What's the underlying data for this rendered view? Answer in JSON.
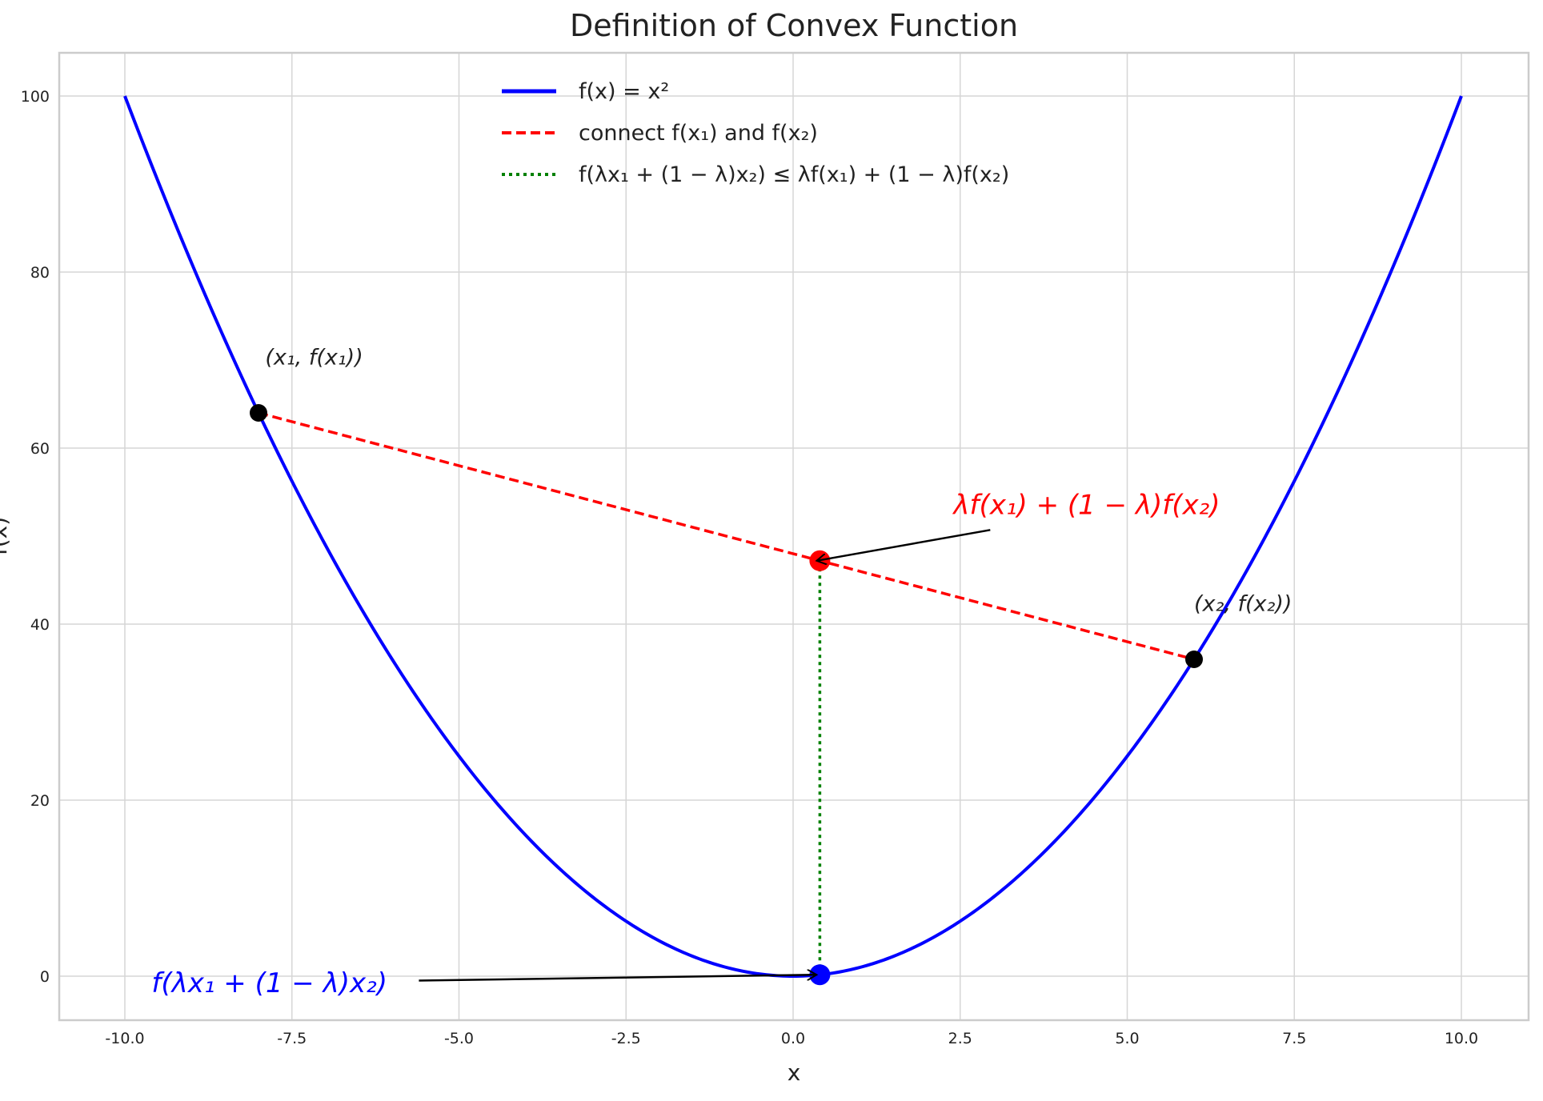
{
  "chart_data": {
    "type": "line",
    "title": "Definition of Convex Function",
    "xlabel": "x",
    "ylabel": "f(x)",
    "xlim": [
      -11,
      11
    ],
    "ylim": [
      -5,
      105
    ],
    "xticks": [
      -10.0,
      -7.5,
      -5.0,
      -2.5,
      0.0,
      2.5,
      5.0,
      7.5,
      10.0
    ],
    "xtick_labels": [
      "-10.0",
      "-7.5",
      "-5.0",
      "-2.5",
      "0.0",
      "2.5",
      "5.0",
      "7.5",
      "10.0"
    ],
    "yticks": [
      0,
      20,
      40,
      60,
      80,
      100
    ],
    "ytick_labels": [
      "0",
      "20",
      "40",
      "60",
      "80",
      "100"
    ],
    "grid": true,
    "legend_placement": "top-center",
    "series": [
      {
        "name": "f(x) = x²",
        "kind": "curve",
        "function": "x^2",
        "x_range": [
          -10,
          10
        ],
        "color": "#0000ff",
        "style": "solid"
      },
      {
        "name": "connect f(x₁) and f(x₂)",
        "kind": "segment",
        "x": [
          -8,
          6
        ],
        "y": [
          64,
          36
        ],
        "color": "#ff0000",
        "style": "dashed"
      },
      {
        "name": "f(λx₁ + (1 − λ)x₂) ≤ λf(x₁) + (1 − λ)f(x₂)",
        "kind": "segment",
        "x": [
          0.4,
          0.4
        ],
        "y": [
          0.16,
          47.2
        ],
        "color": "#008000",
        "style": "dotted"
      }
    ],
    "points": [
      {
        "x": -8,
        "y": 64,
        "color": "#000000"
      },
      {
        "x": 6,
        "y": 36,
        "color": "#000000"
      },
      {
        "x": 0.4,
        "y": 47.2,
        "color": "#ff0000"
      },
      {
        "x": 0.4,
        "y": 0.16,
        "color": "#0000ff"
      }
    ],
    "annotations": [
      {
        "text": "(x₁, f(x₁))",
        "x": -7.9,
        "y": 69.5,
        "color": "#222222"
      },
      {
        "text": "(x₂, f(x₂))",
        "x": 6.0,
        "y": 41.5,
        "color": "#222222"
      },
      {
        "text": "λf(x₁) + (1 − λ)f(x₂)",
        "x": 2.4,
        "y": 52.5,
        "color": "#ff0000",
        "arrow_to": [
          0.4,
          47.2
        ],
        "arrow_from": [
          2.95,
          50.7
        ]
      },
      {
        "text": "f(λx₁ + (1 − λ)x₂)",
        "x": -9.6,
        "y": -1.8,
        "color": "#0000ff",
        "arrow_to": [
          0.4,
          0.16
        ],
        "arrow_from": [
          -5.6,
          -0.5
        ]
      }
    ]
  }
}
